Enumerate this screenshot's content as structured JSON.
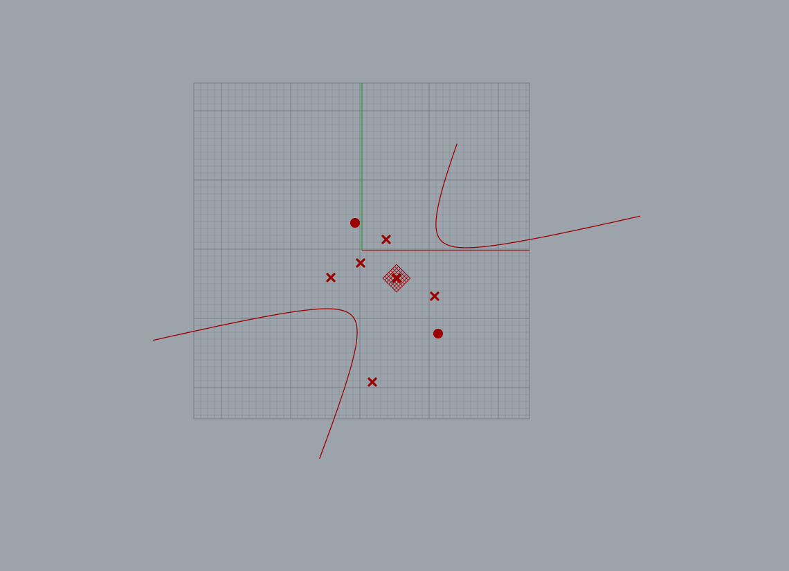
{
  "viewport": {
    "view": "Top",
    "background_color": "#9ca3ab",
    "grid_color": "#7c858e",
    "grid_major_color": "#6f7882",
    "x_axis_color": "#9b1c1c",
    "y_axis_color": "#2f9a3a",
    "object_color": "#9b0000"
  },
  "scene": {
    "hyperbola": {
      "name": "hyperbola-curve",
      "center": [
        0.5,
        -0.4
      ],
      "foci": [
        [
          -0.1,
          0.4
        ],
        [
          1.1,
          -1.2
        ]
      ],
      "control_points": [
        [
          0.35,
          0.16
        ],
        [
          -0.02,
          -0.18
        ],
        [
          -0.45,
          -0.39
        ],
        [
          1.05,
          -0.66
        ],
        [
          0.15,
          -1.9
        ]
      ],
      "branches": 2
    },
    "selected_object": {
      "name": "center-grip",
      "icon": "diamond-mesh-icon",
      "location": [
        0.5,
        -0.4
      ]
    }
  }
}
